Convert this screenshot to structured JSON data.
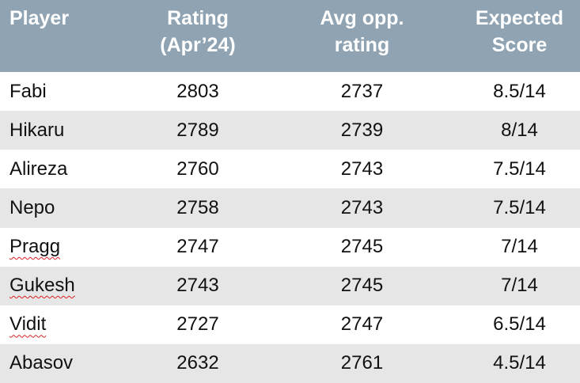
{
  "table": {
    "header": [
      "Player",
      "Rating\n(Apr’24)",
      "Avg opp.\nrating",
      "Expected\nScore"
    ],
    "rows": [
      [
        "Fabi",
        "2803",
        "2737",
        "8.5/14"
      ],
      [
        "Hikaru",
        "2789",
        "2739",
        "8/14"
      ],
      [
        "Alireza",
        "2760",
        "2743",
        "7.5/14"
      ],
      [
        "Nepo",
        "2758",
        "2743",
        "7.5/14"
      ],
      [
        "Pragg",
        "2747",
        "2745",
        "7/14"
      ],
      [
        "Gukesh",
        "2743",
        "2745",
        "7/14"
      ],
      [
        "Vidit",
        "2727",
        "2747",
        "6.5/14"
      ],
      [
        "Abasov",
        "2632",
        "2761",
        "4.5/14"
      ]
    ]
  }
}
